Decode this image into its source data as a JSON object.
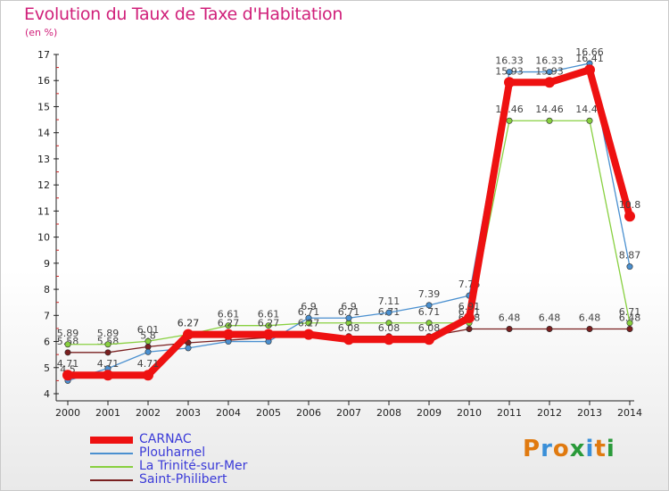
{
  "title": "Evolution du Taux de Taxe d'Habitation",
  "subtitle": "(en %)",
  "logo": {
    "letters": [
      "P",
      "r",
      "o",
      "x",
      "i",
      "t",
      "i"
    ],
    "colors": [
      "#e07a10",
      "#3a8fd8",
      "#e07a10",
      "#2a9a3a",
      "#3a8fd8",
      "#e07a10",
      "#2a9a3a"
    ]
  },
  "chart_data": {
    "type": "line",
    "title": "Evolution du Taux de Taxe d'Habitation",
    "ylabel": "(en %)",
    "xlabel": "",
    "x": [
      "2000",
      "2001",
      "2002",
      "2003",
      "2004",
      "2005",
      "2006",
      "2007",
      "2008",
      "2009",
      "2010",
      "2011",
      "2012",
      "2013",
      "2014"
    ],
    "ylim": [
      4,
      17
    ],
    "yticks": [
      "4",
      "5",
      "6",
      "7",
      "8",
      "9",
      "10",
      "11",
      "12",
      "13",
      "14",
      "15",
      "16",
      "17"
    ],
    "grid": false,
    "legend_position": "bottom-left",
    "series": [
      {
        "name": "Saint-Philibert",
        "color": "#7a2020",
        "values": [
          5.58,
          5.58,
          5.8,
          5.95,
          6.05,
          6.15,
          6.2,
          6.2,
          6.2,
          6.2,
          6.48,
          6.48,
          6.48,
          6.48,
          6.48
        ],
        "labels": [
          "5.58",
          "5.58",
          "5.8",
          "",
          "",
          "",
          "",
          "",
          "",
          "",
          "6.48",
          "6.48",
          "6.48",
          "6.48",
          "6.48"
        ]
      },
      {
        "name": "La Trinité-sur-Mer",
        "color": "#88d040",
        "values": [
          5.89,
          5.89,
          6.01,
          6.27,
          6.61,
          6.61,
          6.71,
          6.71,
          6.71,
          6.71,
          6.71,
          14.46,
          14.46,
          14.46,
          6.71
        ],
        "labels": [
          "5.89",
          "5.89",
          "6.01",
          "6.27",
          "6.61",
          "6.61",
          "6.71",
          "6.71",
          "6.71",
          "6.71",
          "6.71",
          "14.46",
          "14.46",
          "14.46",
          "6.71"
        ]
      },
      {
        "name": "Plouharnel",
        "color": "#4a90d0",
        "values": [
          4.5,
          4.97,
          5.6,
          5.75,
          6.0,
          6.0,
          6.9,
          6.9,
          7.11,
          7.39,
          7.76,
          16.33,
          16.33,
          16.66,
          8.87
        ],
        "labels": [
          "4.5",
          "",
          "",
          "",
          "",
          "",
          "6.9",
          "6.9",
          "7.11",
          "7.39",
          "7.76",
          "16.33",
          "16.33",
          "16.66",
          "8.87"
        ]
      },
      {
        "name": "CARNAC",
        "color": "#ee1111",
        "values": [
          4.71,
          4.71,
          4.71,
          6.27,
          6.27,
          6.27,
          6.27,
          6.08,
          6.08,
          6.08,
          6.91,
          15.93,
          15.93,
          16.41,
          10.8
        ],
        "labels": [
          "4.71",
          "4.71",
          "4.71",
          "6.27",
          "6.27",
          "6.27",
          "6.27",
          "6.08",
          "6.08",
          "6.08",
          "6.91",
          "15.93",
          "15.93",
          "16.41",
          "10.8"
        ]
      }
    ]
  }
}
